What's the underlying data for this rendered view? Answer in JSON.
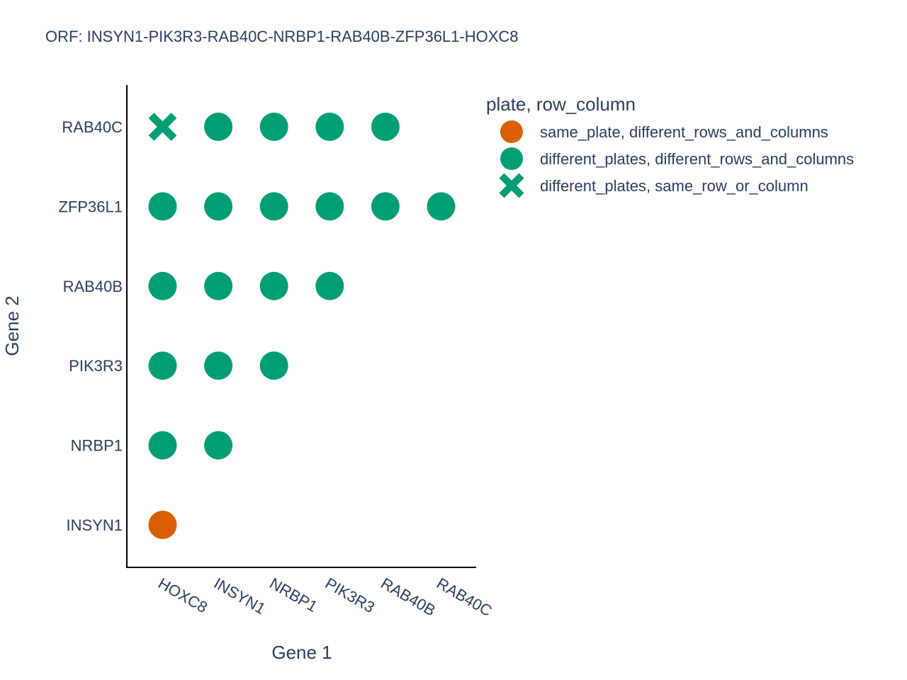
{
  "chart_data": {
    "type": "scatter",
    "title": "ORF: INSYN1-PIK3R3-RAB40C-NRBP1-RAB40B-ZFP36L1-HOXC8",
    "xlabel": "Gene 1",
    "ylabel": "Gene 2",
    "x_categories": [
      "HOXC8",
      "INSYN1",
      "NRBP1",
      "PIK3R3",
      "RAB40B",
      "RAB40C"
    ],
    "y_categories": [
      "INSYN1",
      "NRBP1",
      "PIK3R3",
      "RAB40B",
      "ZFP36L1",
      "RAB40C"
    ],
    "grid": false,
    "legend": {
      "title": "plate, row_column",
      "position": "top-right"
    },
    "series": [
      {
        "name": "same_plate, different_rows_and_columns",
        "color": "#d95f02",
        "marker": "circle",
        "points": [
          {
            "x": "HOXC8",
            "y": "INSYN1"
          }
        ]
      },
      {
        "name": "different_plates, different_rows_and_columns",
        "color": "#029e73",
        "marker": "circle",
        "points": [
          {
            "x": "HOXC8",
            "y": "NRBP1"
          },
          {
            "x": "INSYN1",
            "y": "NRBP1"
          },
          {
            "x": "HOXC8",
            "y": "PIK3R3"
          },
          {
            "x": "INSYN1",
            "y": "PIK3R3"
          },
          {
            "x": "NRBP1",
            "y": "PIK3R3"
          },
          {
            "x": "HOXC8",
            "y": "RAB40B"
          },
          {
            "x": "INSYN1",
            "y": "RAB40B"
          },
          {
            "x": "NRBP1",
            "y": "RAB40B"
          },
          {
            "x": "PIK3R3",
            "y": "RAB40B"
          },
          {
            "x": "HOXC8",
            "y": "ZFP36L1"
          },
          {
            "x": "INSYN1",
            "y": "ZFP36L1"
          },
          {
            "x": "NRBP1",
            "y": "ZFP36L1"
          },
          {
            "x": "PIK3R3",
            "y": "ZFP36L1"
          },
          {
            "x": "RAB40B",
            "y": "ZFP36L1"
          },
          {
            "x": "RAB40C",
            "y": "ZFP36L1"
          },
          {
            "x": "INSYN1",
            "y": "RAB40C"
          },
          {
            "x": "NRBP1",
            "y": "RAB40C"
          },
          {
            "x": "PIK3R3",
            "y": "RAB40C"
          },
          {
            "x": "RAB40B",
            "y": "RAB40C"
          }
        ]
      },
      {
        "name": "different_plates, same_row_or_column",
        "color": "#029e73",
        "marker": "x",
        "points": [
          {
            "x": "HOXC8",
            "y": "RAB40C"
          }
        ]
      }
    ]
  }
}
